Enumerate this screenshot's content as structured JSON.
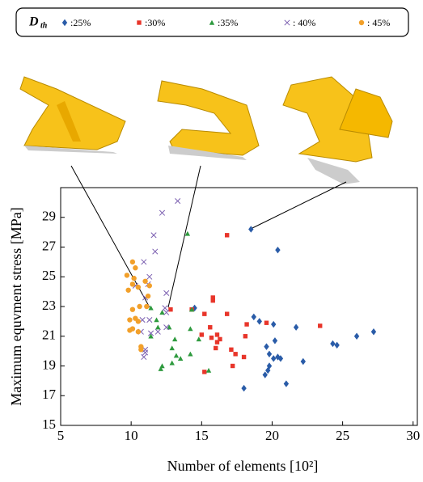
{
  "chart_data": {
    "type": "scatter",
    "legend_title": "D",
    "legend_title_sub": "th",
    "xlabel": "Number of elements [10²]",
    "ylabel": "Maximum equvment stress [MPa]",
    "xlim": [
      5,
      30.3
    ],
    "ylim": [
      15,
      31
    ],
    "xticks": [
      5,
      10,
      15,
      20,
      25,
      30
    ],
    "yticks": [
      15,
      17,
      19,
      21,
      23,
      25,
      27,
      29
    ],
    "series": [
      {
        "name": ":25%",
        "color": "#2a5ca8",
        "marker": "diamond",
        "x": [
          18.5,
          20.4,
          14.5,
          18.7,
          19.1,
          20.1,
          21.7,
          20.2,
          19.6,
          19.8,
          20.1,
          20.4,
          20.6,
          22.2,
          19.8,
          19.7,
          19.5,
          21.0,
          18.0,
          26.0,
          27.2,
          24.3,
          24.6
        ],
        "y": [
          28.2,
          26.8,
          22.9,
          22.3,
          22.0,
          21.8,
          21.6,
          20.7,
          20.3,
          19.8,
          19.5,
          19.6,
          19.5,
          19.3,
          19.0,
          18.7,
          18.4,
          17.8,
          17.5,
          21.0,
          21.3,
          20.5,
          20.4
        ]
      },
      {
        "name": ":30%",
        "color": "#e8352a",
        "marker": "square",
        "x": [
          16.8,
          15.8,
          15.8,
          12.8,
          14.3,
          15.2,
          16.8,
          19.6,
          18.2,
          15.6,
          23.4,
          15.0,
          15.7,
          16.1,
          18.1,
          16.1,
          16.0,
          17.1,
          17.4,
          18.0,
          17.2,
          15.2,
          16.3
        ],
        "y": [
          27.8,
          23.6,
          23.4,
          22.8,
          22.8,
          22.5,
          22.5,
          21.9,
          21.8,
          21.6,
          21.7,
          21.1,
          20.9,
          21.1,
          21.0,
          20.6,
          20.2,
          20.1,
          19.8,
          19.6,
          19.0,
          18.6,
          20.8
        ]
      },
      {
        "name": ":35%",
        "color": "#2e9a3e",
        "marker": "triangle",
        "x": [
          14.0,
          11.4,
          12.2,
          14.3,
          11.8,
          11.9,
          14.2,
          12.7,
          13.1,
          14.8,
          12.9,
          13.2,
          13.5,
          14.2,
          12.9,
          12.2,
          12.1,
          15.5,
          11.4
        ],
        "y": [
          27.9,
          22.9,
          22.6,
          22.8,
          22.1,
          21.6,
          21.5,
          21.6,
          20.8,
          20.8,
          20.2,
          19.7,
          19.5,
          19.8,
          19.2,
          19.0,
          18.8,
          18.7,
          21.0
        ]
      },
      {
        "name": ": 40%",
        "color": "#7b5fb0",
        "marker": "cross",
        "x": [
          13.3,
          12.2,
          11.6,
          10.9,
          11.7,
          11.3,
          11.2,
          10.3,
          12.5,
          11.0,
          12.4,
          12.5,
          10.8,
          11.3,
          11.9,
          10.7,
          11.4,
          11.0,
          11.0,
          10.9,
          12.5
        ],
        "y": [
          30.1,
          29.3,
          27.8,
          26.0,
          26.7,
          25.0,
          24.5,
          24.4,
          23.9,
          23.6,
          22.9,
          22.6,
          22.1,
          22.1,
          21.3,
          21.3,
          21.2,
          20.1,
          19.9,
          19.6,
          21.6
        ]
      },
      {
        "name": ": 45%",
        "color": "#f2a02a",
        "marker": "circle",
        "x": [
          10.1,
          10.3,
          9.7,
          10.2,
          11.0,
          10.1,
          11.3,
          10.5,
          9.8,
          11.2,
          10.6,
          11.1,
          10.1,
          10.3,
          9.9,
          10.5,
          10.1,
          9.9,
          10.5,
          10.7,
          10.7
        ],
        "y": [
          26.0,
          25.6,
          25.1,
          24.9,
          24.7,
          24.5,
          24.4,
          24.3,
          24.1,
          23.7,
          23.0,
          23.0,
          22.8,
          22.2,
          22.1,
          22.0,
          21.5,
          21.4,
          21.3,
          20.3,
          20.1
        ]
      }
    ]
  }
}
